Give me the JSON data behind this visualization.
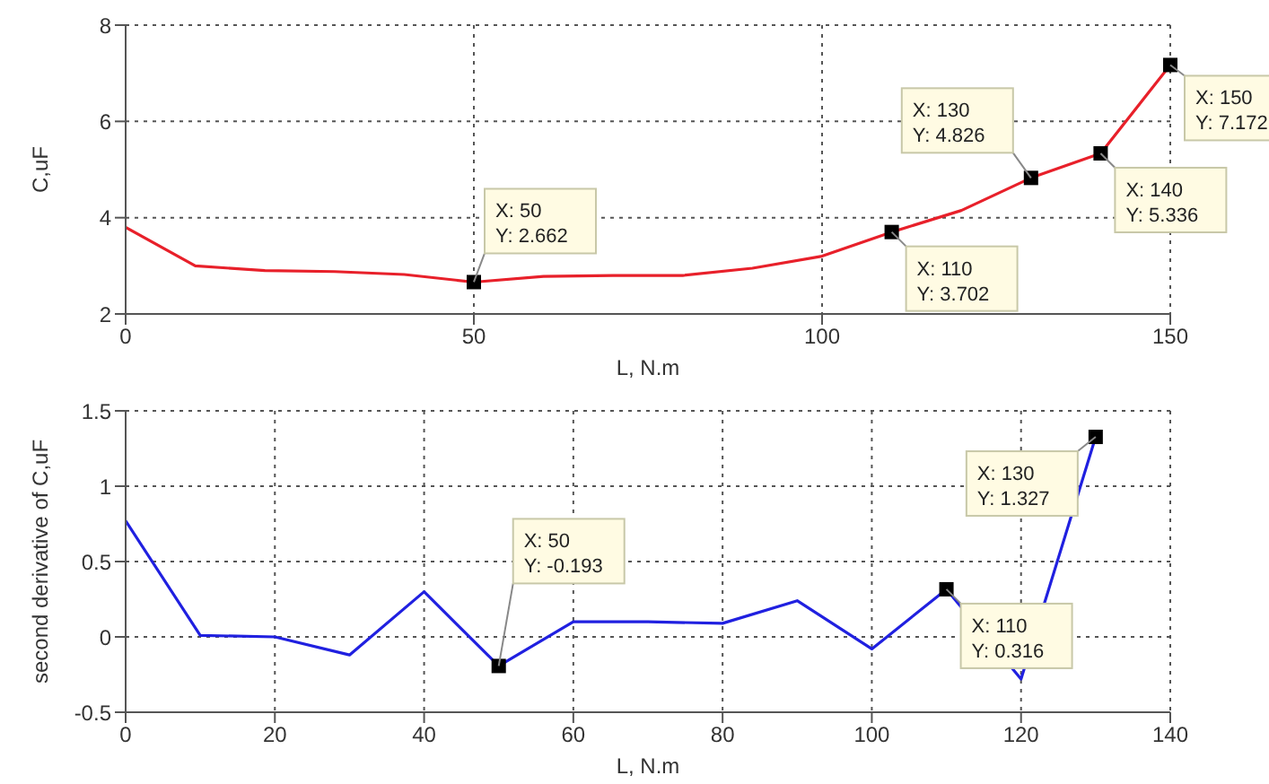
{
  "chart_data": [
    {
      "type": "line",
      "xlabel": "L, N.m",
      "ylabel": "C,uF",
      "x": [
        0,
        10,
        20,
        30,
        40,
        50,
        60,
        70,
        80,
        90,
        100,
        110,
        120,
        130,
        140,
        150
      ],
      "series": [
        {
          "color": "#e8202a",
          "values": [
            3.8,
            3.0,
            2.9,
            2.88,
            2.82,
            2.662,
            2.78,
            2.8,
            2.8,
            2.95,
            3.2,
            3.702,
            4.15,
            4.826,
            5.336,
            7.172
          ]
        }
      ],
      "xlim": [
        0,
        150
      ],
      "ylim": [
        2,
        8
      ],
      "xticks": [
        0,
        50,
        100,
        150
      ],
      "yticks": [
        2,
        4,
        6,
        8
      ],
      "grid": true,
      "annotations": [
        {
          "text": "X: 50\nY: 2.662",
          "x": 50,
          "y": 2.662
        },
        {
          "text": "X: 110\nY: 3.702",
          "x": 110,
          "y": 3.702
        },
        {
          "text": "X: 130\nY: 4.826",
          "x": 130,
          "y": 4.826
        },
        {
          "text": "X: 140\nY: 5.336",
          "x": 140,
          "y": 5.336
        },
        {
          "text": "X: 150\nY: 7.172",
          "x": 150,
          "y": 7.172
        }
      ]
    },
    {
      "type": "line",
      "xlabel": "L, N.m",
      "ylabel": "second derivative of C,uF",
      "x": [
        0,
        10,
        20,
        30,
        40,
        50,
        60,
        70,
        80,
        90,
        100,
        110,
        120,
        130
      ],
      "series": [
        {
          "color": "#2020e0",
          "values": [
            0.77,
            0.01,
            0.0,
            -0.12,
            0.3,
            -0.193,
            0.1,
            0.1,
            0.09,
            0.24,
            -0.08,
            0.316,
            -0.28,
            1.327
          ]
        }
      ],
      "xlim": [
        0,
        140
      ],
      "ylim": [
        -0.5,
        1.5
      ],
      "xticks": [
        0,
        20,
        40,
        60,
        80,
        100,
        120,
        140
      ],
      "yticks": [
        -0.5,
        0,
        0.5,
        1,
        1.5
      ],
      "grid": true,
      "annotations": [
        {
          "text": "X: 50\nY: -0.193",
          "x": 50,
          "y": -0.193
        },
        {
          "text": "X: 110\nY: 0.316",
          "x": 110,
          "y": 0.316
        },
        {
          "text": "X: 130\nY: 1.327",
          "x": 130,
          "y": 1.327
        }
      ]
    }
  ]
}
